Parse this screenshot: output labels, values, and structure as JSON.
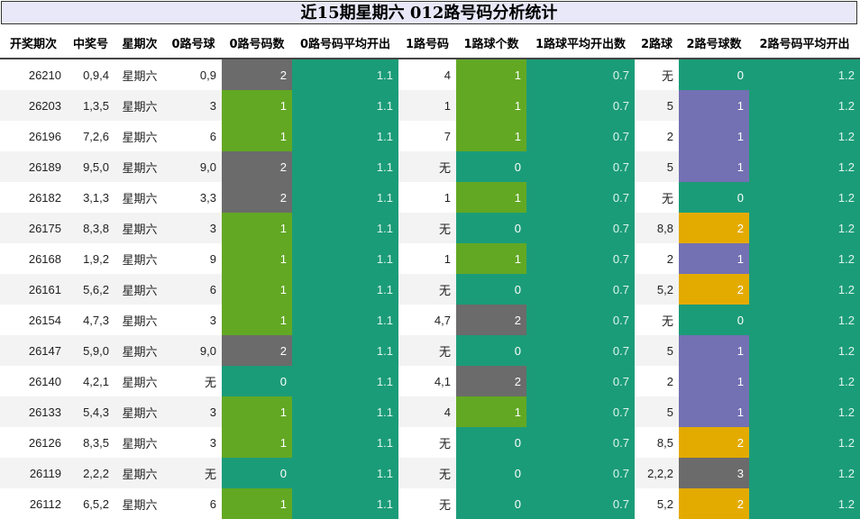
{
  "title": "近15期星期六 012路号码分析统计",
  "headers": [
    "开奖期次",
    "中奖号",
    "星期次",
    "0路号球",
    "0路号码数",
    "0路号码平均开出",
    "1路号码",
    "1路球个数",
    "1路球平均开出数",
    "2路球",
    "2路号球数",
    "2路号码平均开出"
  ],
  "colors": {
    "gray": "#6b6b6b",
    "green": "#62a823",
    "teal": "#1b9c78",
    "purple": "#7370b3",
    "orange": "#e3ab00"
  },
  "rows": [
    {
      "period": "26210",
      "numbers": "0,9,4",
      "weekday": "星期六",
      "r0": "0,9",
      "r0_count": "2",
      "r0_color": "gray",
      "r0_avg": "1.1",
      "r1": "4",
      "r1_count": "1",
      "r1_color": "green",
      "r1_avg": "0.7",
      "r2": "无",
      "r2_count": "0",
      "r2_color": "teal",
      "r2_avg": "1.2"
    },
    {
      "period": "26203",
      "numbers": "1,3,5",
      "weekday": "星期六",
      "r0": "3",
      "r0_count": "1",
      "r0_color": "green",
      "r0_avg": "1.1",
      "r1": "1",
      "r1_count": "1",
      "r1_color": "green",
      "r1_avg": "0.7",
      "r2": "5",
      "r2_count": "1",
      "r2_color": "purple",
      "r2_avg": "1.2"
    },
    {
      "period": "26196",
      "numbers": "7,2,6",
      "weekday": "星期六",
      "r0": "6",
      "r0_count": "1",
      "r0_color": "green",
      "r0_avg": "1.1",
      "r1": "7",
      "r1_count": "1",
      "r1_color": "green",
      "r1_avg": "0.7",
      "r2": "2",
      "r2_count": "1",
      "r2_color": "purple",
      "r2_avg": "1.2"
    },
    {
      "period": "26189",
      "numbers": "9,5,0",
      "weekday": "星期六",
      "r0": "9,0",
      "r0_count": "2",
      "r0_color": "gray",
      "r0_avg": "1.1",
      "r1": "无",
      "r1_count": "0",
      "r1_color": "teal",
      "r1_avg": "0.7",
      "r2": "5",
      "r2_count": "1",
      "r2_color": "purple",
      "r2_avg": "1.2"
    },
    {
      "period": "26182",
      "numbers": "3,1,3",
      "weekday": "星期六",
      "r0": "3,3",
      "r0_count": "2",
      "r0_color": "gray",
      "r0_avg": "1.1",
      "r1": "1",
      "r1_count": "1",
      "r1_color": "green",
      "r1_avg": "0.7",
      "r2": "无",
      "r2_count": "0",
      "r2_color": "teal",
      "r2_avg": "1.2"
    },
    {
      "period": "26175",
      "numbers": "8,3,8",
      "weekday": "星期六",
      "r0": "3",
      "r0_count": "1",
      "r0_color": "green",
      "r0_avg": "1.1",
      "r1": "无",
      "r1_count": "0",
      "r1_color": "teal",
      "r1_avg": "0.7",
      "r2": "8,8",
      "r2_count": "2",
      "r2_color": "orange",
      "r2_avg": "1.2"
    },
    {
      "period": "26168",
      "numbers": "1,9,2",
      "weekday": "星期六",
      "r0": "9",
      "r0_count": "1",
      "r0_color": "green",
      "r0_avg": "1.1",
      "r1": "1",
      "r1_count": "1",
      "r1_color": "green",
      "r1_avg": "0.7",
      "r2": "2",
      "r2_count": "1",
      "r2_color": "purple",
      "r2_avg": "1.2"
    },
    {
      "period": "26161",
      "numbers": "5,6,2",
      "weekday": "星期六",
      "r0": "6",
      "r0_count": "1",
      "r0_color": "green",
      "r0_avg": "1.1",
      "r1": "无",
      "r1_count": "0",
      "r1_color": "teal",
      "r1_avg": "0.7",
      "r2": "5,2",
      "r2_count": "2",
      "r2_color": "orange",
      "r2_avg": "1.2"
    },
    {
      "period": "26154",
      "numbers": "4,7,3",
      "weekday": "星期六",
      "r0": "3",
      "r0_count": "1",
      "r0_color": "green",
      "r0_avg": "1.1",
      "r1": "4,7",
      "r1_count": "2",
      "r1_color": "gray",
      "r1_avg": "0.7",
      "r2": "无",
      "r2_count": "0",
      "r2_color": "teal",
      "r2_avg": "1.2"
    },
    {
      "period": "26147",
      "numbers": "5,9,0",
      "weekday": "星期六",
      "r0": "9,0",
      "r0_count": "2",
      "r0_color": "gray",
      "r0_avg": "1.1",
      "r1": "无",
      "r1_count": "0",
      "r1_color": "teal",
      "r1_avg": "0.7",
      "r2": "5",
      "r2_count": "1",
      "r2_color": "purple",
      "r2_avg": "1.2"
    },
    {
      "period": "26140",
      "numbers": "4,2,1",
      "weekday": "星期六",
      "r0": "无",
      "r0_count": "0",
      "r0_color": "teal",
      "r0_avg": "1.1",
      "r1": "4,1",
      "r1_count": "2",
      "r1_color": "gray",
      "r1_avg": "0.7",
      "r2": "2",
      "r2_count": "1",
      "r2_color": "purple",
      "r2_avg": "1.2"
    },
    {
      "period": "26133",
      "numbers": "5,4,3",
      "weekday": "星期六",
      "r0": "3",
      "r0_count": "1",
      "r0_color": "green",
      "r0_avg": "1.1",
      "r1": "4",
      "r1_count": "1",
      "r1_color": "green",
      "r1_avg": "0.7",
      "r2": "5",
      "r2_count": "1",
      "r2_color": "purple",
      "r2_avg": "1.2"
    },
    {
      "period": "26126",
      "numbers": "8,3,5",
      "weekday": "星期六",
      "r0": "3",
      "r0_count": "1",
      "r0_color": "green",
      "r0_avg": "1.1",
      "r1": "无",
      "r1_count": "0",
      "r1_color": "teal",
      "r1_avg": "0.7",
      "r2": "8,5",
      "r2_count": "2",
      "r2_color": "orange",
      "r2_avg": "1.2"
    },
    {
      "period": "26119",
      "numbers": "2,2,2",
      "weekday": "星期六",
      "r0": "无",
      "r0_count": "0",
      "r0_color": "teal",
      "r0_avg": "1.1",
      "r1": "无",
      "r1_count": "0",
      "r1_color": "teal",
      "r1_avg": "0.7",
      "r2": "2,2,2",
      "r2_count": "3",
      "r2_color": "gray",
      "r2_avg": "1.2"
    },
    {
      "period": "26112",
      "numbers": "6,5,2",
      "weekday": "星期六",
      "r0": "6",
      "r0_count": "1",
      "r0_color": "green",
      "r0_avg": "1.1",
      "r1": "无",
      "r1_count": "0",
      "r1_color": "teal",
      "r1_avg": "0.7",
      "r2": "5,2",
      "r2_count": "2",
      "r2_color": "orange",
      "r2_avg": "1.2"
    }
  ]
}
